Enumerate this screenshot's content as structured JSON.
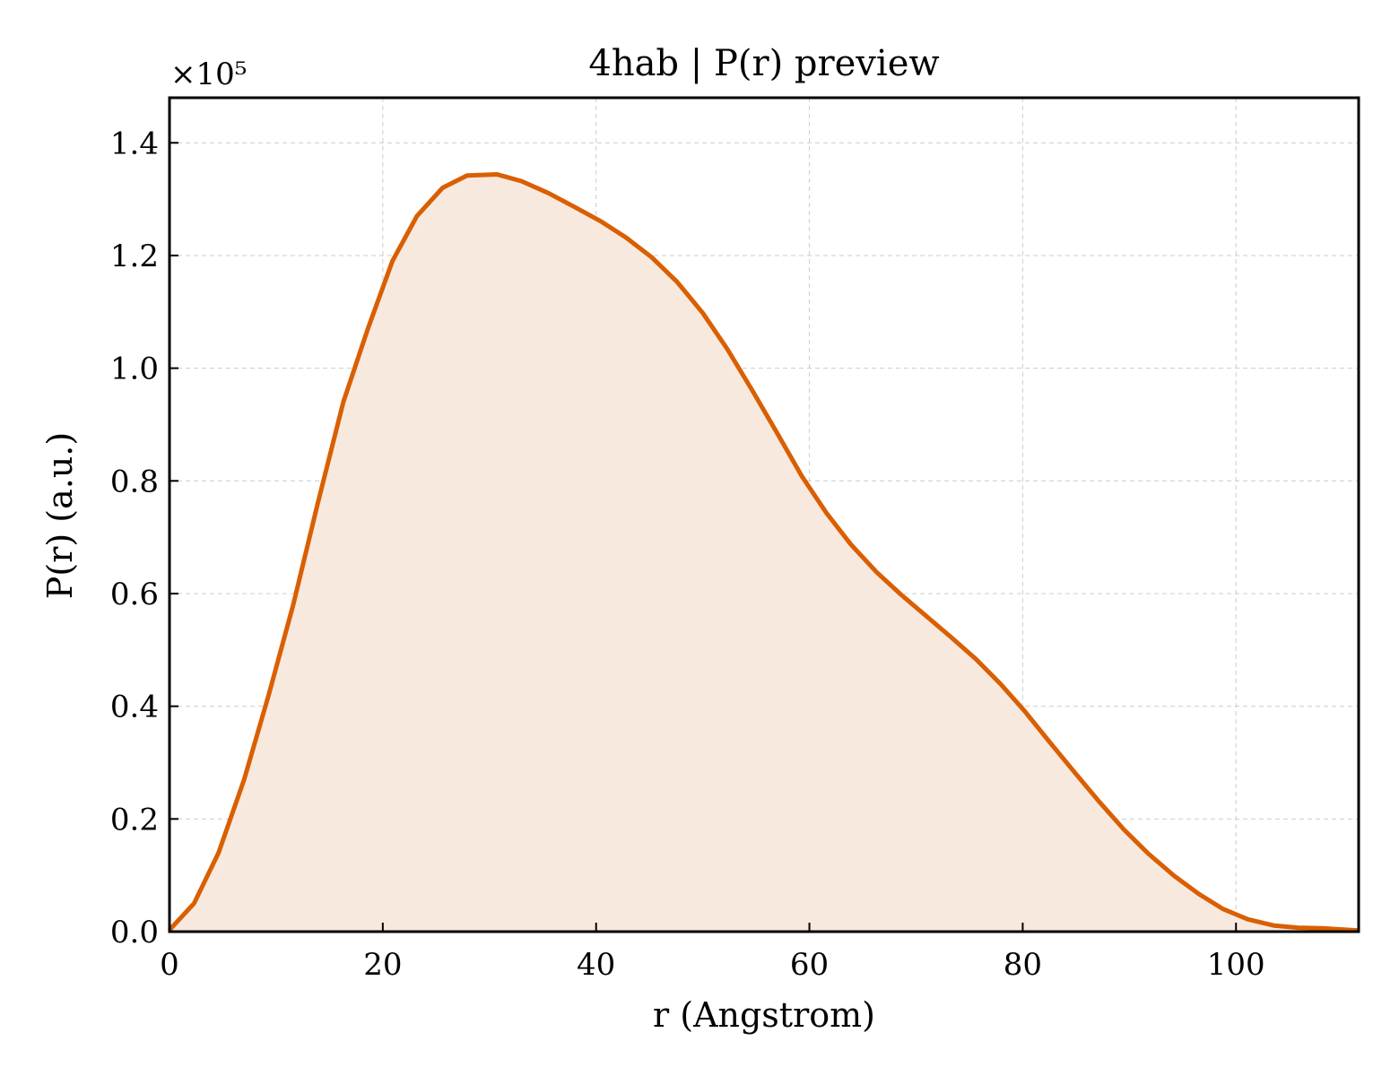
{
  "chart_data": {
    "type": "area",
    "title": "4hab | P(r) preview",
    "xlabel": "r (Angstrom)",
    "ylabel": "P(r) (a.u.)",
    "y_multiplier_label": "×10⁵",
    "y_scale_factor": 100000,
    "xlim": [
      0,
      111.5
    ],
    "ylim": [
      0,
      1.48
    ],
    "x_ticks": [
      0,
      20,
      40,
      60,
      80,
      100
    ],
    "y_ticks": [
      0.0,
      0.2,
      0.4,
      0.6,
      0.8,
      1.0,
      1.2,
      1.4
    ],
    "x_tick_labels": [
      "0",
      "20",
      "40",
      "60",
      "80",
      "100"
    ],
    "y_tick_labels": [
      "0.0",
      "0.2",
      "0.4",
      "0.6",
      "0.8",
      "1.0",
      "1.2",
      "1.4"
    ],
    "grid": true,
    "line_color": "#d95f02",
    "fill_color": "#f8e9df",
    "x": [
      0,
      2.3,
      4.6,
      7.0,
      9.3,
      11.6,
      13.9,
      16.3,
      18.6,
      20.9,
      23.2,
      25.6,
      27.9,
      30.7,
      33.0,
      35.5,
      38.0,
      40.5,
      42.8,
      45.2,
      47.6,
      50.0,
      52.3,
      54.6,
      57.0,
      59.3,
      61.6,
      63.9,
      66.3,
      68.6,
      70.9,
      73.2,
      75.6,
      77.9,
      80.2,
      82.5,
      84.9,
      87.2,
      89.5,
      91.8,
      94.2,
      96.5,
      98.8,
      101.1,
      103.5,
      105.8,
      108.1,
      111.5
    ],
    "values": [
      0.003,
      0.05,
      0.14,
      0.27,
      0.42,
      0.58,
      0.76,
      0.94,
      1.07,
      1.19,
      1.27,
      1.32,
      1.342,
      1.344,
      1.332,
      1.311,
      1.286,
      1.26,
      1.232,
      1.197,
      1.153,
      1.098,
      1.034,
      0.962,
      0.884,
      0.808,
      0.743,
      0.687,
      0.638,
      0.598,
      0.561,
      0.524,
      0.484,
      0.44,
      0.391,
      0.337,
      0.282,
      0.23,
      0.181,
      0.138,
      0.099,
      0.067,
      0.04,
      0.022,
      0.011,
      0.007,
      0.006,
      0.002
    ]
  }
}
